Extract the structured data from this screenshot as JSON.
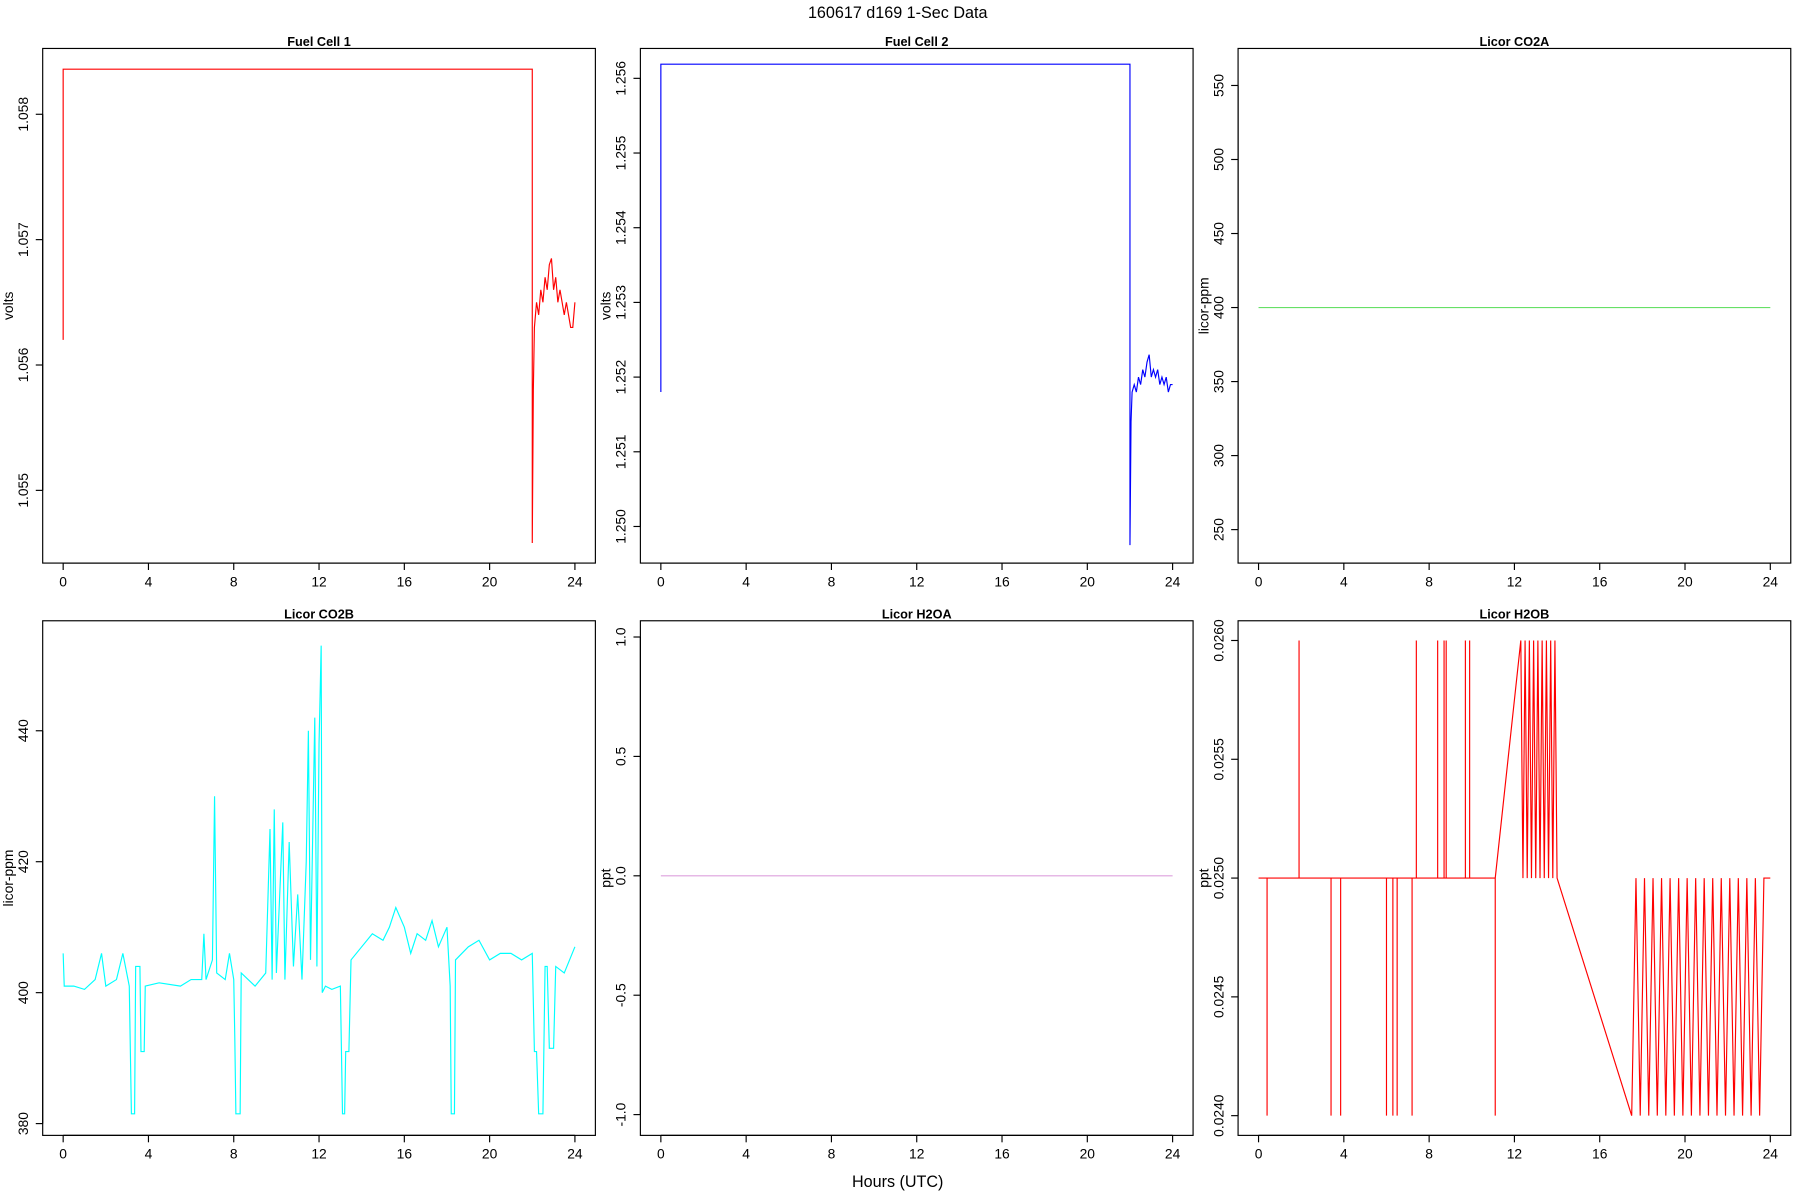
{
  "title": "160617   d169   1-Sec Data",
  "xlabel": "Hours (UTC)",
  "chart_data": [
    {
      "type": "line",
      "title": "Fuel Cell 1",
      "ylabel": "volts",
      "color": "#ff0000",
      "xlim": [
        -0.96,
        24.96
      ],
      "xticks": [
        0,
        4,
        8,
        12,
        16,
        20,
        24
      ],
      "ylim": [
        1.05442,
        1.058525
      ],
      "yticks": [
        1.055,
        1.056,
        1.057,
        1.058
      ],
      "x": [
        0,
        0,
        22,
        22,
        22.05,
        22.1,
        22.2,
        22.3,
        22.4,
        22.5,
        22.6,
        22.7,
        22.8,
        22.9,
        23.0,
        23.1,
        23.2,
        23.3,
        23.4,
        23.5,
        23.6,
        23.7,
        23.8,
        23.9,
        24.0
      ],
      "values": [
        1.0562,
        1.05836,
        1.05836,
        1.05458,
        1.0558,
        1.0563,
        1.0565,
        1.0564,
        1.0566,
        1.0565,
        1.0567,
        1.0566,
        1.0568,
        1.05685,
        1.0566,
        1.0567,
        1.0565,
        1.0566,
        1.0565,
        1.0564,
        1.0565,
        1.0564,
        1.0563,
        1.0563,
        1.0565
      ]
    },
    {
      "type": "line",
      "title": "Fuel Cell 2",
      "ylabel": "volts",
      "color": "#0000ff",
      "xlim": [
        -0.96,
        24.96
      ],
      "xticks": [
        0,
        4,
        8,
        12,
        16,
        20,
        24
      ],
      "ylim": [
        1.24951,
        1.2564
      ],
      "yticks": [
        {
          "value": 1.25,
          "label": "1.250"
        },
        1.251,
        1.252,
        1.253,
        1.254,
        1.255,
        1.256
      ],
      "x": [
        0,
        0,
        22,
        22,
        22.05,
        22.1,
        22.2,
        22.3,
        22.4,
        22.5,
        22.6,
        22.7,
        22.8,
        22.9,
        23.0,
        23.1,
        23.2,
        23.3,
        23.4,
        23.5,
        23.6,
        23.7,
        23.8,
        23.9,
        24.0
      ],
      "values": [
        1.2518,
        1.25619,
        1.25619,
        1.24975,
        1.2514,
        1.2518,
        1.2519,
        1.2518,
        1.252,
        1.2519,
        1.2521,
        1.252,
        1.2522,
        1.2523,
        1.252,
        1.2521,
        1.252,
        1.2521,
        1.2519,
        1.252,
        1.2519,
        1.252,
        1.2518,
        1.2519,
        1.2519
      ]
    },
    {
      "type": "line",
      "title": "Licor CO2A",
      "ylabel": "licor-ppm",
      "color": "#66e066",
      "xlim": [
        -0.96,
        24.96
      ],
      "xticks": [
        0,
        4,
        8,
        12,
        16,
        20,
        24
      ],
      "ylim": [
        227.4,
        575
      ],
      "yticks": [
        250,
        300,
        350,
        400,
        450,
        500,
        550
      ],
      "x": [
        0,
        24
      ],
      "values": [
        400,
        400
      ]
    },
    {
      "type": "line",
      "title": "Licor CO2B",
      "ylabel": "licor-ppm",
      "color": "#00ffff",
      "xlim": [
        -0.96,
        24.96
      ],
      "xticks": [
        0,
        4,
        8,
        12,
        16,
        20,
        24
      ],
      "ylim": [
        378.2,
        456.8
      ],
      "yticks": [
        380,
        400,
        420,
        440
      ],
      "x": [
        0,
        0.05,
        0.5,
        1,
        1.5,
        1.8,
        2,
        2.5,
        2.8,
        3.1,
        3.2,
        3.35,
        3.4,
        3.6,
        3.65,
        3.8,
        3.85,
        4.5,
        5.5,
        6,
        6.5,
        6.6,
        6.7,
        7,
        7.1,
        7.2,
        7.6,
        7.8,
        8.0,
        8.05,
        8.1,
        8.3,
        8.35,
        9,
        9.5,
        9.7,
        9.8,
        9.9,
        10,
        10.3,
        10.4,
        10.6,
        10.8,
        11,
        11.2,
        11.4,
        11.5,
        11.6,
        11.8,
        11.9,
        12.0,
        12.1,
        12.15,
        12.3,
        12.6,
        13.0,
        13.1,
        13.2,
        13.25,
        13.4,
        13.5,
        14,
        14.5,
        15,
        15.3,
        15.6,
        16,
        16.3,
        16.6,
        17,
        17.3,
        17.6,
        18,
        18.15,
        18.2,
        18.35,
        18.4,
        19,
        19.5,
        20,
        20.5,
        21,
        21.5,
        22,
        22.1,
        22.2,
        22.3,
        22.5,
        22.6,
        22.7,
        22.8,
        23.0,
        23.1,
        23.5,
        24
      ],
      "values": [
        406,
        401,
        401,
        400.5,
        402,
        406,
        401,
        402,
        406,
        401,
        381.5,
        381.5,
        404,
        404,
        391,
        391,
        401,
        401.5,
        401,
        402,
        402,
        409,
        402,
        405,
        430,
        403,
        402,
        406,
        402,
        393,
        381.5,
        381.5,
        403,
        401,
        403,
        425,
        402,
        428,
        403,
        426,
        402,
        423,
        404,
        415,
        402,
        420,
        440,
        405,
        442,
        404,
        438,
        453,
        400,
        401,
        400.5,
        401,
        381.5,
        381.5,
        391,
        391,
        405,
        407,
        409,
        408,
        410,
        413,
        410,
        406,
        409,
        408,
        411,
        407,
        410,
        401,
        381.5,
        381.5,
        405,
        407,
        408,
        405,
        406,
        406,
        405,
        406,
        391,
        391,
        381.5,
        381.5,
        404,
        404,
        391.5,
        391.5,
        404,
        403,
        407
      ]
    },
    {
      "type": "line",
      "title": "Licor H2OA",
      "ylabel": "ppt",
      "color": "#dda0dd",
      "xlim": [
        -0.96,
        24.96
      ],
      "xticks": [
        0,
        4,
        8,
        12,
        16,
        20,
        24
      ],
      "ylim": [
        -1.087,
        1.068
      ],
      "yticks": [
        {
          "value": -1,
          "label": "-1.0"
        },
        -0.5,
        {
          "value": 0,
          "label": "0.0"
        },
        0.5,
        {
          "value": 1,
          "label": "1.0"
        }
      ],
      "x": [
        0,
        24
      ],
      "values": [
        0,
        0
      ]
    },
    {
      "type": "line",
      "title": "Licor H2OB",
      "ylabel": "ppt",
      "color": "#ff0000",
      "xlim": [
        -0.96,
        24.96
      ],
      "xticks": [
        0,
        4,
        8,
        12,
        16,
        20,
        24
      ],
      "ylim": [
        0.023917,
        0.026083
      ],
      "yticks": [
        {
          "value": 0.024,
          "label": "0.0240"
        },
        {
          "value": 0.0245,
          "label": "0.0245"
        },
        {
          "value": 0.025,
          "label": "0.0250"
        },
        {
          "value": 0.0255,
          "label": "0.0255"
        },
        {
          "value": 0.026,
          "label": "0.0260"
        }
      ],
      "x": [
        0,
        0.4,
        0.4,
        0.4,
        1.9,
        1.9,
        1.9,
        3.4,
        3.4,
        3.4,
        3.85,
        3.85,
        3.85,
        6.0,
        6.0,
        6.0,
        6.3,
        6.3,
        6.3,
        6.5,
        6.5,
        6.5,
        7.2,
        7.2,
        7.2,
        7.4,
        7.4,
        7.4,
        8.4,
        8.4,
        8.4,
        8.7,
        8.7,
        8.7,
        8.8,
        8.8,
        8.8,
        9.7,
        9.7,
        9.7,
        9.9,
        9.9,
        9.9,
        11.1,
        11.1,
        11.1,
        12.3,
        12.4,
        12.5,
        12.6,
        12.7,
        12.8,
        12.9,
        13.0,
        13.1,
        13.2,
        13.3,
        13.4,
        13.5,
        13.6,
        13.7,
        13.8,
        13.9,
        14.0,
        17.5,
        17.7,
        17.9,
        18.1,
        18.3,
        18.5,
        18.7,
        18.9,
        19.1,
        19.3,
        19.5,
        19.7,
        19.9,
        20.1,
        20.3,
        20.5,
        20.7,
        20.9,
        21.1,
        21.3,
        21.5,
        21.7,
        21.9,
        22.1,
        22.3,
        22.5,
        22.7,
        22.9,
        23.1,
        23.3,
        23.5,
        23.7,
        24
      ],
      "values": [
        0.025,
        0.025,
        0.024,
        0.025,
        0.025,
        0.026,
        0.025,
        0.025,
        0.024,
        0.025,
        0.025,
        0.024,
        0.025,
        0.025,
        0.024,
        0.025,
        0.025,
        0.024,
        0.025,
        0.025,
        0.024,
        0.025,
        0.025,
        0.024,
        0.025,
        0.025,
        0.026,
        0.025,
        0.025,
        0.026,
        0.025,
        0.025,
        0.026,
        0.025,
        0.025,
        0.026,
        0.025,
        0.025,
        0.026,
        0.025,
        0.025,
        0.026,
        0.025,
        0.025,
        0.024,
        0.025,
        0.026,
        0.025,
        0.026,
        0.025,
        0.026,
        0.025,
        0.026,
        0.025,
        0.026,
        0.025,
        0.026,
        0.025,
        0.026,
        0.025,
        0.026,
        0.025,
        0.026,
        0.025,
        0.024,
        0.025,
        0.024,
        0.025,
        0.024,
        0.025,
        0.024,
        0.025,
        0.024,
        0.025,
        0.024,
        0.025,
        0.024,
        0.025,
        0.024,
        0.025,
        0.024,
        0.025,
        0.024,
        0.025,
        0.024,
        0.025,
        0.024,
        0.025,
        0.024,
        0.025,
        0.024,
        0.025,
        0.024,
        0.025,
        0.024,
        0.025,
        0.025
      ]
    }
  ]
}
